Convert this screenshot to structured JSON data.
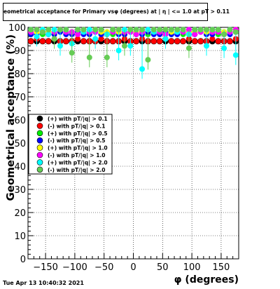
{
  "title": "eometrical acceptance for Primary vsφ (degrees) at | η | <= 1.0 at pT > 0.11",
  "timestamp": "Tue Apr 13 10:40:32 2021",
  "chart_data": {
    "type": "scatter",
    "title": "eometrical acceptance for Primary vsφ (degrees) at | η | <= 1.0 at pT > 0.11",
    "xlabel": "φ (degrees)",
    "ylabel": "Geometrical acceptance (%)",
    "xlim": [
      -180,
      180
    ],
    "ylim": [
      0,
      100
    ],
    "xticks": [
      -150,
      -100,
      -50,
      0,
      50,
      100,
      150
    ],
    "xtick_labels": [
      "−150",
      "−100",
      "−50",
      "0",
      "50",
      "100",
      "150"
    ],
    "yticks": [
      0,
      10,
      20,
      30,
      40,
      50,
      60,
      70,
      80,
      90,
      100
    ],
    "grid": true,
    "legend_placement": "middle-left",
    "series": [
      {
        "name": "(+) with pT/|q| > 0.1",
        "color": "#000000",
        "marker": "circle",
        "x": [
          -175,
          -165,
          -155,
          -145,
          -135,
          -125,
          -115,
          -105,
          -95,
          -85,
          -75,
          -65,
          -55,
          -45,
          -35,
          -25,
          -15,
          -5,
          5,
          15,
          25,
          35,
          45,
          55,
          65,
          75,
          85,
          95,
          105,
          115,
          125,
          135,
          145,
          155,
          165,
          175
        ],
        "y": [
          94,
          94,
          94,
          94,
          94,
          94,
          94,
          94,
          94,
          94,
          94,
          94,
          94,
          94,
          94,
          94,
          94,
          94,
          94,
          94,
          94,
          94,
          94,
          94,
          94,
          94,
          94,
          94,
          94,
          94,
          94,
          94,
          94,
          94,
          94,
          94
        ]
      },
      {
        "name": "(-) with pT/|q| > 0.1",
        "color": "#ff0000",
        "marker": "circle",
        "x": [
          -175,
          -165,
          -155,
          -145,
          -135,
          -125,
          -115,
          -105,
          -95,
          -85,
          -75,
          -65,
          -55,
          -45,
          -35,
          -25,
          -15,
          -5,
          5,
          15,
          25,
          35,
          45,
          55,
          65,
          75,
          85,
          95,
          105,
          115,
          125,
          135,
          145,
          155,
          165,
          175
        ],
        "y": [
          94,
          95,
          94,
          94,
          95,
          94,
          94,
          94,
          95,
          94,
          94,
          94,
          95,
          94,
          94,
          94,
          95,
          94,
          94,
          95,
          94,
          94,
          94,
          95,
          94,
          94,
          94,
          95,
          94,
          94,
          94,
          95,
          94,
          94,
          94,
          95
        ]
      },
      {
        "name": "(+) with pT/|q| > 0.5",
        "color": "#00ee00",
        "marker": "circle",
        "x": [
          -175,
          -165,
          -155,
          -145,
          -135,
          -125,
          -115,
          -105,
          -95,
          -85,
          -75,
          -65,
          -55,
          -45,
          -35,
          -25,
          -15,
          -5,
          5,
          15,
          25,
          35,
          45,
          55,
          65,
          75,
          85,
          95,
          105,
          115,
          125,
          135,
          145,
          155,
          165,
          175
        ],
        "y": [
          97,
          98,
          97,
          98,
          97,
          98,
          97,
          98,
          97,
          98,
          97,
          98,
          97,
          98,
          97,
          98,
          97,
          98,
          97,
          98,
          97,
          98,
          97,
          98,
          97,
          98,
          97,
          98,
          97,
          98,
          97,
          98,
          97,
          98,
          97,
          98
        ]
      },
      {
        "name": "(-) with pT/|q| > 0.5",
        "color": "#0000ff",
        "marker": "circle",
        "x": [
          -175,
          -165,
          -155,
          -145,
          -135,
          -125,
          -115,
          -105,
          -95,
          -85,
          -75,
          -65,
          -55,
          -45,
          -35,
          -25,
          -15,
          -5,
          5,
          15,
          25,
          35,
          45,
          55,
          65,
          75,
          85,
          95,
          105,
          115,
          125,
          135,
          145,
          155,
          165,
          175
        ],
        "y": [
          97,
          97,
          98,
          97,
          97,
          98,
          97,
          97,
          98,
          97,
          97,
          98,
          97,
          97,
          98,
          97,
          97,
          98,
          97,
          97,
          98,
          97,
          97,
          98,
          97,
          97,
          98,
          97,
          97,
          98,
          97,
          97,
          98,
          97,
          97,
          98
        ]
      },
      {
        "name": "(+) with pT/|q| > 1.0",
        "color": "#ffff00",
        "marker": "circle",
        "x": [
          -175,
          -165,
          -155,
          -145,
          -135,
          -125,
          -115,
          -105,
          -95,
          -85,
          -75,
          -65,
          -55,
          -45,
          -35,
          -25,
          -15,
          -5,
          5,
          15,
          25,
          35,
          45,
          55,
          65,
          75,
          85,
          95,
          105,
          115,
          125,
          135,
          145,
          155,
          165,
          175
        ],
        "y": [
          98,
          98,
          99,
          98,
          98,
          99,
          98,
          98,
          99,
          98,
          98,
          99,
          98,
          98,
          99,
          98,
          98,
          99,
          98,
          98,
          99,
          98,
          98,
          99,
          98,
          98,
          99,
          98,
          98,
          99,
          98,
          98,
          99,
          98,
          98,
          99
        ]
      },
      {
        "name": "(-) with pT/|q| > 1.0",
        "color": "#ff00ff",
        "marker": "circle",
        "x": [
          -175,
          -165,
          -155,
          -145,
          -135,
          -125,
          -115,
          -105,
          -95,
          -85,
          -75,
          -65,
          -55,
          -45,
          -35,
          -25,
          -15,
          -5,
          5,
          15,
          25,
          35,
          45,
          55,
          65,
          75,
          85,
          95,
          105,
          115,
          125,
          135,
          145,
          155,
          165,
          175
        ],
        "y": [
          98,
          99,
          98,
          97,
          98,
          99,
          98,
          98,
          97,
          99,
          98,
          98,
          99,
          97,
          98,
          99,
          98,
          98,
          97,
          98,
          99,
          98,
          98,
          97,
          99,
          98,
          98,
          99,
          97,
          98,
          99,
          98,
          98,
          97,
          98,
          99
        ]
      },
      {
        "name": "(+) with pT/|q| > 2.0",
        "color": "#00ffff",
        "marker": "circle",
        "x": [
          -175,
          -165,
          -155,
          -145,
          -135,
          -125,
          -115,
          -105,
          -95,
          -85,
          -75,
          -65,
          -55,
          -45,
          -35,
          -25,
          -15,
          -5,
          5,
          15,
          25,
          35,
          45,
          55,
          65,
          75,
          85,
          95,
          105,
          115,
          125,
          135,
          145,
          155,
          165,
          175
        ],
        "y": [
          99,
          96,
          99,
          97,
          99,
          92,
          99,
          93,
          99,
          98,
          99,
          95,
          99,
          97,
          99,
          90,
          99,
          92,
          99,
          82,
          99,
          98,
          99,
          95,
          99,
          98,
          99,
          97,
          99,
          99,
          92,
          99,
          99,
          91,
          99,
          88
        ]
      },
      {
        "name": "(-) with pT/|q| > 2.0",
        "color": "#66cc55",
        "marker": "circle",
        "x": [
          -175,
          -165,
          -155,
          -145,
          -135,
          -125,
          -115,
          -105,
          -95,
          -85,
          -75,
          -65,
          -55,
          -45,
          -35,
          -25,
          -15,
          -5,
          5,
          15,
          25,
          35,
          45,
          55,
          65,
          75,
          85,
          95,
          105,
          115,
          125,
          135,
          145,
          155,
          165,
          175
        ],
        "y": [
          99,
          99,
          98,
          99,
          95,
          99,
          99,
          89,
          99,
          99,
          87,
          99,
          99,
          87,
          99,
          99,
          92,
          99,
          99,
          99,
          86,
          99,
          99,
          99,
          99,
          99,
          99,
          91,
          99,
          99,
          99,
          99,
          99,
          97,
          99,
          98
        ]
      }
    ]
  }
}
